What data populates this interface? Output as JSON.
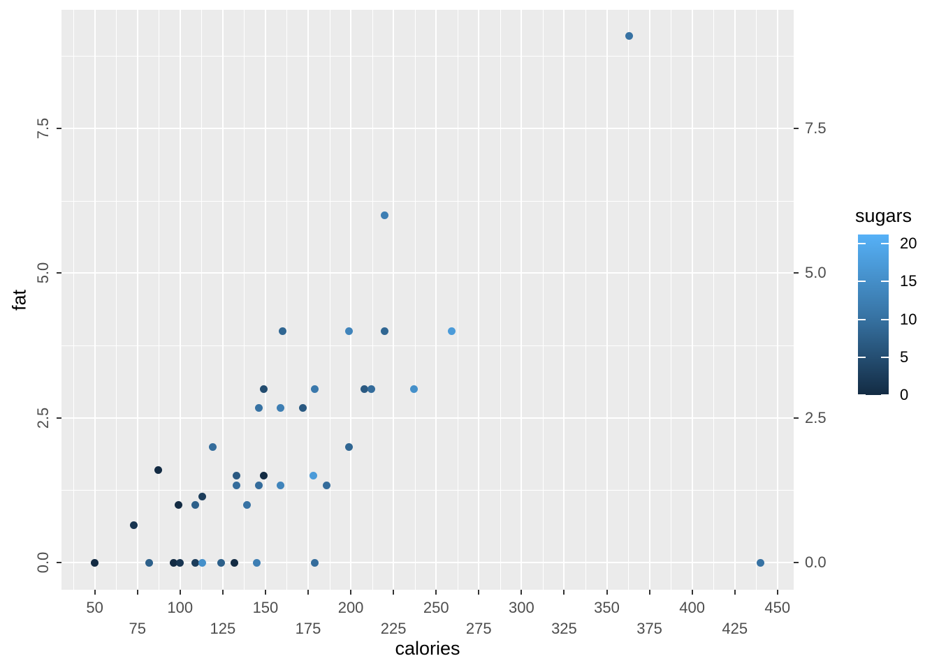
{
  "chart_data": {
    "type": "scatter",
    "xlabel": "calories",
    "ylabel": "fat",
    "color_label": "sugars",
    "x_axis": {
      "ticks_row1": [
        50,
        100,
        150,
        200,
        250,
        300,
        350,
        400,
        450
      ],
      "ticks_row2": [
        75,
        125,
        175,
        225,
        275,
        325,
        375,
        425
      ],
      "range": [
        30.5,
        459.5
      ],
      "minor_gridlines_step": 12.5
    },
    "y_axis": {
      "ticks": [
        "0.0",
        "2.5",
        "5.0",
        "7.5"
      ],
      "tick_values": [
        0,
        2.5,
        5,
        7.5
      ],
      "minor_tick_values": [
        1.25,
        3.75,
        6.25,
        8.75
      ],
      "range": [
        -0.47,
        9.55
      ],
      "duplicated_right": true
    },
    "legend": {
      "title": "sugars",
      "tick_labels": [
        20,
        15,
        10,
        5,
        0
      ],
      "bar_range": [
        0,
        21.2
      ],
      "gradient_low": "#132B43",
      "gradient_high": "#56B1F7",
      "position": "right"
    },
    "grid": true,
    "points": [
      {
        "calories": 50,
        "fat": 0,
        "sugars": 0
      },
      {
        "calories": 73,
        "fat": 0.65,
        "sugars": 1
      },
      {
        "calories": 82,
        "fat": 0,
        "sugars": 7
      },
      {
        "calories": 87,
        "fat": 1.6,
        "sugars": 0
      },
      {
        "calories": 96,
        "fat": 0,
        "sugars": 0
      },
      {
        "calories": 100,
        "fat": 0,
        "sugars": 1
      },
      {
        "calories": 99,
        "fat": 1.0,
        "sugars": 0
      },
      {
        "calories": 109,
        "fat": 0,
        "sugars": 2
      },
      {
        "calories": 109,
        "fat": 1.0,
        "sugars": 7
      },
      {
        "calories": 113,
        "fat": 0,
        "sugars": 15
      },
      {
        "calories": 113,
        "fat": 1.14,
        "sugars": 2
      },
      {
        "calories": 119,
        "fat": 2.0,
        "sugars": 9
      },
      {
        "calories": 124,
        "fat": 0,
        "sugars": 7
      },
      {
        "calories": 132,
        "fat": 0,
        "sugars": 0
      },
      {
        "calories": 133,
        "fat": 1.33,
        "sugars": 9
      },
      {
        "calories": 133,
        "fat": 1.5,
        "sugars": 6
      },
      {
        "calories": 139,
        "fat": 1.0,
        "sugars": 10
      },
      {
        "calories": 145,
        "fat": 0,
        "sugars": 12
      },
      {
        "calories": 146,
        "fat": 1.33,
        "sugars": 9
      },
      {
        "calories": 146,
        "fat": 2.67,
        "sugars": 10
      },
      {
        "calories": 149,
        "fat": 1.5,
        "sugars": 0
      },
      {
        "calories": 149,
        "fat": 3.0,
        "sugars": 4
      },
      {
        "calories": 159,
        "fat": 1.33,
        "sugars": 13
      },
      {
        "calories": 159,
        "fat": 2.67,
        "sugars": 12
      },
      {
        "calories": 160,
        "fat": 4.0,
        "sugars": 8
      },
      {
        "calories": 172,
        "fat": 2.67,
        "sugars": 6
      },
      {
        "calories": 178,
        "fat": 1.5,
        "sugars": 17
      },
      {
        "calories": 179,
        "fat": 0,
        "sugars": 9
      },
      {
        "calories": 179,
        "fat": 3.0,
        "sugars": 11
      },
      {
        "calories": 186,
        "fat": 1.33,
        "sugars": 9
      },
      {
        "calories": 199,
        "fat": 2.0,
        "sugars": 8
      },
      {
        "calories": 199,
        "fat": 4.0,
        "sugars": 13
      },
      {
        "calories": 208,
        "fat": 3.0,
        "sugars": 6
      },
      {
        "calories": 212,
        "fat": 3.0,
        "sugars": 9
      },
      {
        "calories": 220,
        "fat": 4.0,
        "sugars": 8
      },
      {
        "calories": 220,
        "fat": 6.0,
        "sugars": 12
      },
      {
        "calories": 237,
        "fat": 3.0,
        "sugars": 15
      },
      {
        "calories": 259,
        "fat": 4.0,
        "sugars": 17
      },
      {
        "calories": 363,
        "fat": 9.1,
        "sugars": 10
      },
      {
        "calories": 440,
        "fat": 0,
        "sugars": 10
      }
    ]
  },
  "colors": {
    "panel_bg": "#EBEBEB",
    "gridline": "#FFFFFF",
    "tick_label": "#4D4D4D",
    "axis_title": "#000000",
    "tick_mark": "#333333",
    "gradient_low": "#132B43",
    "gradient_high": "#56B1F7"
  }
}
